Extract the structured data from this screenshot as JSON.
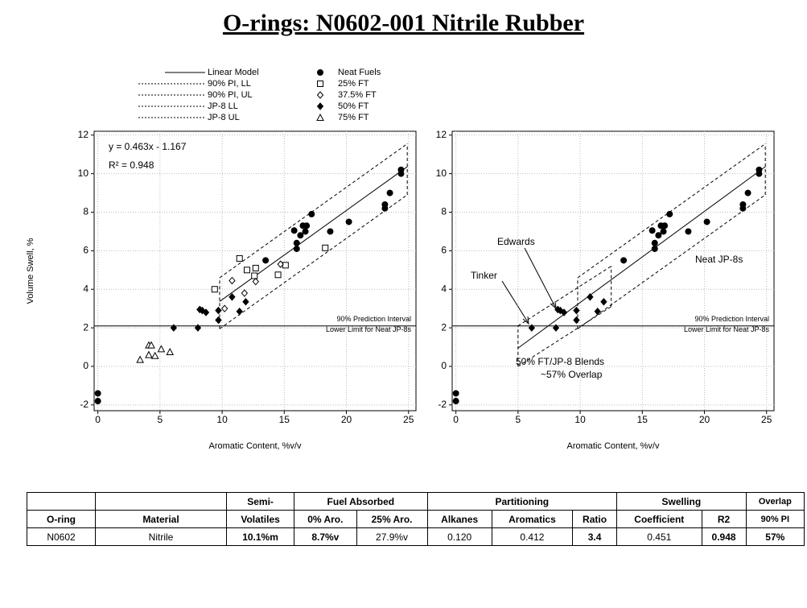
{
  "title": "O-rings: N0602-001 Nitrile Rubber",
  "chart_data": [
    {
      "type": "scatter",
      "x_label": "Aromatic Content, %v/v",
      "y_label": "Volume Swell, %",
      "xlim": [
        -0.3,
        25.6
      ],
      "ylim": [
        -2.3,
        12.2
      ],
      "xticks": [
        0,
        5,
        10,
        15,
        20,
        25
      ],
      "yticks": [
        -2,
        0,
        2,
        4,
        6,
        8,
        10,
        12
      ],
      "grid": true,
      "hline": {
        "value": 2.1,
        "label": [
          "90% Prediction Interval",
          "Lower Limit for Neat JP-8s"
        ]
      },
      "annotations": [
        "y = 0.463x - 1.167",
        "R² = 0.948"
      ],
      "pi_boxes": [
        [
          1,
          2
        ]
      ],
      "series": [
        {
          "name": "Linear Model",
          "kind": "line",
          "dash": "solid",
          "color": "#000000",
          "x": [
            9.8,
            24.9
          ],
          "values": [
            3.37,
            10.36
          ]
        },
        {
          "name": "90% PI, LL",
          "kind": "line",
          "dash": "dashed",
          "color": "#000000",
          "x": [
            9.8,
            24.9
          ],
          "values": [
            1.95,
            8.9
          ]
        },
        {
          "name": "90% PI, UL",
          "kind": "line",
          "dash": "dashed",
          "color": "#000000",
          "x": [
            9.8,
            24.9
          ],
          "values": [
            4.6,
            11.55
          ]
        },
        {
          "name": "Neat Fuels",
          "kind": "scatter",
          "marker": "circle-filled",
          "color": "#000000",
          "x": [
            0,
            0,
            13.5,
            15.8,
            16.0,
            16.0,
            16.3,
            16.5,
            16.8,
            16.7,
            17.2,
            18.7,
            20.2,
            23.1,
            23.1,
            23.5,
            24.4,
            24.4
          ],
          "values": [
            -1.4,
            -1.8,
            5.5,
            7.05,
            6.4,
            6.1,
            6.8,
            7.3,
            7.3,
            7.0,
            7.9,
            7.0,
            7.5,
            8.4,
            8.2,
            9.0,
            10.2,
            10.0
          ]
        },
        {
          "name": "25% FT",
          "kind": "scatter",
          "marker": "square-open",
          "color": "#000000",
          "x": [
            9.4,
            11.4,
            12.0,
            12.7,
            12.6,
            14.5,
            15.1,
            18.3
          ],
          "values": [
            4.0,
            5.6,
            5.0,
            5.1,
            4.7,
            4.75,
            5.25,
            6.15
          ]
        },
        {
          "name": "37.5% FT",
          "kind": "scatter",
          "marker": "diamond-open",
          "color": "#000000",
          "x": [
            10.2,
            10.8,
            11.8,
            12.7,
            14.7
          ],
          "values": [
            3.0,
            4.45,
            3.8,
            4.4,
            5.3
          ]
        },
        {
          "name": "50% FT",
          "kind": "scatter",
          "marker": "diamond-filled",
          "color": "#000000",
          "x": [
            6.1,
            8.05,
            8.2,
            8.4,
            8.7,
            9.7,
            9.7,
            10.8,
            11.4,
            11.9
          ],
          "values": [
            2.0,
            2.0,
            2.95,
            2.9,
            2.8,
            2.9,
            2.4,
            3.6,
            2.85,
            3.35
          ]
        },
        {
          "name": "75% FT",
          "kind": "scatter",
          "marker": "triangle-open",
          "color": "#000000",
          "x": [
            3.4,
            4.1,
            4.3,
            4.1,
            4.6,
            5.1,
            5.8
          ],
          "values": [
            0.35,
            1.1,
            1.1,
            0.6,
            0.55,
            0.9,
            0.75
          ]
        }
      ]
    },
    {
      "type": "scatter",
      "x_label": "Aromatic Content, %v/v",
      "xlim": [
        -0.3,
        25.6
      ],
      "ylim": [
        -2.3,
        12.2
      ],
      "xticks": [
        0,
        5,
        10,
        15,
        20,
        25
      ],
      "yticks": [
        -2,
        0,
        2,
        4,
        6,
        8,
        10,
        12
      ],
      "grid": true,
      "hline": {
        "value": 2.1,
        "label": [
          "90% Prediction Interval",
          "Lower Limit for Neat JP-8s"
        ]
      },
      "annotations": [
        "Edwards",
        "Tinker",
        "Neat JP-8s",
        "50% FT/JP-8 Blends",
        "~57% Overlap"
      ],
      "pi_boxes": [
        [
          1,
          2
        ],
        [
          3,
          4
        ]
      ],
      "series": [
        {
          "kind": "line",
          "dash": "solid",
          "color": "#000000",
          "x": [
            5,
            24.9
          ],
          "values": [
            0.95,
            10.36
          ]
        },
        {
          "kind": "line",
          "dash": "dashed",
          "color": "#000000",
          "x": [
            9.8,
            24.9
          ],
          "values": [
            1.95,
            8.9
          ]
        },
        {
          "kind": "line",
          "dash": "dashed",
          "color": "#000000",
          "x": [
            9.8,
            24.9
          ],
          "values": [
            4.6,
            11.55
          ]
        },
        {
          "name": "JP-8 LL",
          "kind": "line",
          "dash": "dashed",
          "color": "#000000",
          "x": [
            5,
            12.5
          ],
          "values": [
            0.0,
            3.1
          ]
        },
        {
          "name": "JP-8 UL",
          "kind": "line",
          "dash": "dashed",
          "color": "#000000",
          "x": [
            5,
            12.5
          ],
          "values": [
            2.1,
            5.2
          ]
        },
        {
          "kind": "scatter",
          "marker": "circle-filled",
          "color": "#000000",
          "x": [
            0,
            0,
            13.5,
            15.8,
            16.0,
            16.0,
            16.3,
            16.5,
            16.8,
            16.7,
            17.2,
            18.7,
            20.2,
            23.1,
            23.1,
            23.5,
            24.4,
            24.4
          ],
          "values": [
            -1.4,
            -1.8,
            5.5,
            7.05,
            6.4,
            6.1,
            6.8,
            7.3,
            7.3,
            7.0,
            7.9,
            7.0,
            7.5,
            8.4,
            8.2,
            9.0,
            10.2,
            10.0
          ]
        },
        {
          "kind": "scatter",
          "marker": "diamond-filled",
          "color": "#000000",
          "x": [
            6.1,
            8.05,
            8.2,
            8.4,
            8.7,
            9.7,
            9.7,
            10.8,
            11.4,
            11.9
          ],
          "values": [
            2.0,
            2.0,
            2.95,
            2.9,
            2.8,
            2.9,
            2.4,
            3.6,
            2.85,
            3.35
          ]
        }
      ]
    }
  ],
  "table": {
    "header_top": [
      "Semi-",
      "Fuel Absorbed",
      "Partitioning",
      "Swelling",
      "Overlap"
    ],
    "header": [
      "O-ring",
      "Material",
      "Volatiles",
      "0% Aro.",
      "25% Aro.",
      "Alkanes",
      "Aromatics",
      "Ratio",
      "Coefficient",
      "R2",
      "90% PI"
    ],
    "rows": [
      [
        "N0602",
        "Nitrile",
        "10.1%m",
        "8.7%v",
        "27.9%v",
        "0.120",
        "0.412",
        "3.4",
        "0.451",
        "0.948",
        "57%"
      ]
    ]
  }
}
